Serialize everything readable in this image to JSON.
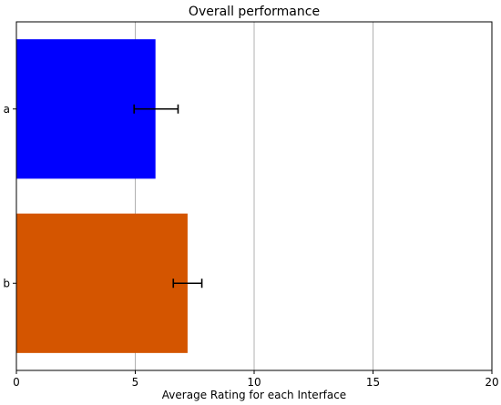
{
  "chart_data": {
    "type": "bar",
    "orientation": "horizontal",
    "title": "Overall performance",
    "xlabel": "Average Rating for each Interface",
    "ylabel": "",
    "xlim": [
      0,
      20
    ],
    "xticks": [
      0,
      5,
      10,
      15,
      20
    ],
    "grid": "vertical",
    "categories": [
      "a",
      "b"
    ],
    "values": [
      5.85,
      7.2
    ],
    "errors": [
      {
        "low": 4.95,
        "high": 6.8
      },
      {
        "low": 6.6,
        "high": 7.8
      }
    ],
    "colors": [
      "#0000ff",
      "#d45500"
    ]
  }
}
